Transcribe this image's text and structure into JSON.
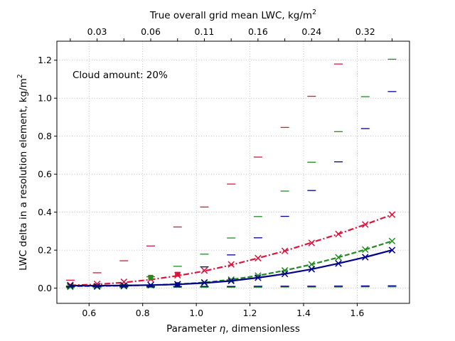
{
  "chart_data": {
    "type": "line",
    "xlabel_prefix": "Parameter ",
    "xlabel_symbol": "η",
    "xlabel_suffix": ", dimensionless",
    "ylabel_main": "LWC delta in a resolution element, kg/m",
    "ylabel_sup": "2",
    "top_xlabel_main": "True overall grid mean LWC, kg/m",
    "top_xlabel_sup": "2",
    "annotation": "Cloud amount: 20%",
    "xlim": [
      0.48,
      1.795
    ],
    "ylim": [
      -0.08,
      1.3
    ],
    "x_ticks": [
      0.6,
      0.8,
      1.0,
      1.2,
      1.4,
      1.6
    ],
    "x_tick_labels": [
      "0.6",
      "0.8",
      "1.0",
      "1.2",
      "1.4",
      "1.6"
    ],
    "y_ticks": [
      0.0,
      0.2,
      0.4,
      0.6,
      0.8,
      1.0,
      1.2
    ],
    "y_tick_labels": [
      "0.0",
      "0.2",
      "0.4",
      "0.6",
      "0.8",
      "1.0",
      "1.2"
    ],
    "top_ticks": [
      0.53,
      0.63,
      0.73,
      0.83,
      0.93,
      1.03,
      1.13,
      1.23,
      1.33,
      1.43,
      1.53,
      1.63,
      1.73
    ],
    "top_tick_labels": [
      "",
      "0.03",
      "",
      "0.06",
      "",
      "0.11",
      "",
      "0.16",
      "",
      "0.24",
      "",
      "0.32",
      ""
    ],
    "grid": true,
    "x": [
      0.53,
      0.63,
      0.73,
      0.83,
      0.93,
      1.03,
      1.13,
      1.23,
      1.33,
      1.43,
      1.53,
      1.63,
      1.73
    ],
    "series": [
      {
        "color": "#dc143c",
        "line_style": "dashdot",
        "line_values": [
          0.015,
          0.02,
          0.03,
          0.045,
          0.065,
          0.09,
          0.122,
          0.158,
          0.196,
          0.24,
          0.285,
          0.335,
          0.387
        ],
        "x_values": [
          0.017,
          0.022,
          0.033,
          0.048,
          0.068,
          0.093,
          0.125,
          0.158,
          0.196,
          0.238,
          0.285,
          0.335,
          0.387
        ],
        "upper_dash": [
          0.042,
          0.081,
          0.144,
          0.222,
          0.322,
          0.427,
          0.548,
          0.69,
          0.846,
          1.01,
          1.18,
          null,
          null
        ],
        "lower_dash": [
          0.006,
          0.007,
          0.007,
          0.008,
          0.008,
          0.008,
          0.009,
          0.009,
          0.01,
          0.01,
          0.011,
          0.012,
          0.012
        ],
        "square_markers": [
          {
            "x": 0.93,
            "y": 0.073
          }
        ]
      },
      {
        "color": "#228b22",
        "line_style": "dashed",
        "line_values": [
          0.01,
          0.011,
          0.013,
          0.016,
          0.021,
          0.03,
          0.045,
          0.066,
          0.093,
          0.125,
          0.162,
          0.203,
          0.248
        ],
        "x_values": [
          0.007,
          0.008,
          0.01,
          0.016,
          0.021,
          0.028,
          0.045,
          0.066,
          0.093,
          0.125,
          0.162,
          0.203,
          0.248
        ],
        "upper_dash": [
          0.012,
          0.014,
          0.02,
          0.06,
          0.115,
          0.179,
          0.264,
          0.377,
          0.511,
          0.663,
          0.824,
          1.008,
          1.205
        ],
        "lower_dash": [
          0.003,
          0.003,
          0.004,
          0.004,
          0.005,
          0.005,
          0.005,
          0.005,
          0.006,
          0.006,
          0.006,
          0.007,
          0.007
        ],
        "square_markers": [
          {
            "x": 0.83,
            "y": 0.057
          }
        ]
      },
      {
        "color": "#00008b",
        "line_style": "solid",
        "line_values": [
          0.013,
          0.013,
          0.014,
          0.016,
          0.02,
          0.027,
          0.038,
          0.055,
          0.075,
          0.1,
          0.13,
          0.163,
          0.2
        ],
        "x_values": [
          0.013,
          0.01,
          0.013,
          0.016,
          0.02,
          0.03,
          0.038,
          0.055,
          0.075,
          0.1,
          0.13,
          0.163,
          0.2
        ],
        "upper_dash": [
          null,
          null,
          null,
          null,
          0.02,
          0.112,
          0.175,
          0.265,
          0.378,
          0.514,
          0.665,
          0.84,
          1.035
        ],
        "lower_dash": [
          0.008,
          0.008,
          0.008,
          0.009,
          0.009,
          0.009,
          0.009,
          0.01,
          0.01,
          0.01,
          0.011,
          0.011,
          0.012
        ],
        "square_markers": [
          {
            "x": 0.93,
            "y": 0.018
          }
        ]
      }
    ]
  }
}
